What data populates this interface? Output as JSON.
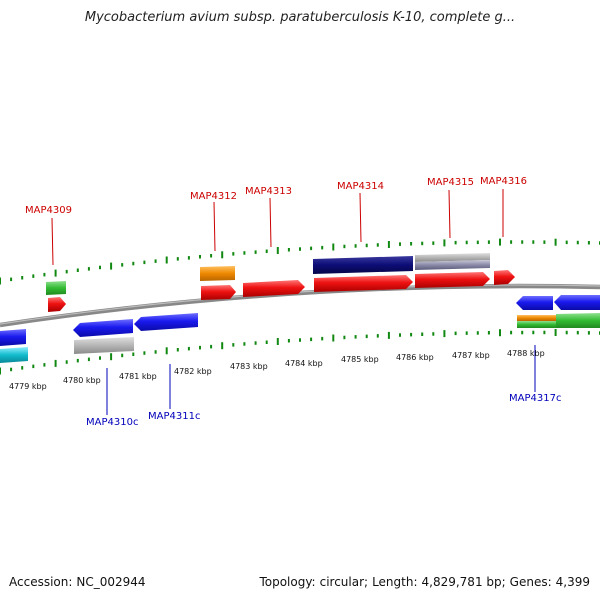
{
  "title": "Mycobacterium avium subsp. paratuberculosis K-10, complete g...",
  "footer": {
    "accession_label": "Accession:",
    "accession": "NC_002944",
    "topology_label": "Topology:",
    "topology": "circular;",
    "length_label": "Length:",
    "length": "4,829,781 bp;",
    "genes_label": "Genes:",
    "genes": "4,399"
  },
  "scale_labels": [
    "4779 kbp",
    "4780 kbp",
    "4781 kbp",
    "4782 kbp",
    "4783 kbp",
    "4784 kbp",
    "4785 kbp",
    "4786 kbp",
    "4787 kbp",
    "4788 kbp"
  ],
  "gene_labels_forward": [
    "MAP4309",
    "MAP4312",
    "MAP4313",
    "MAP4314",
    "MAP4315",
    "MAP4316"
  ],
  "gene_labels_reverse": [
    "MAP4310c",
    "MAP4311c",
    "MAP4317c"
  ],
  "colors": {
    "forward_label": "#cc0000",
    "reverse_label": "#0000bb",
    "cds": "#ee1111",
    "gene_blue": "#1a1aee",
    "gene_navy": "#0d0d77",
    "orange": "#ee8800",
    "green": "#33bb33",
    "grey": "#b5b5b5",
    "cyan": "#11bbcc",
    "tick": "#118811",
    "backbone": "#888888"
  }
}
